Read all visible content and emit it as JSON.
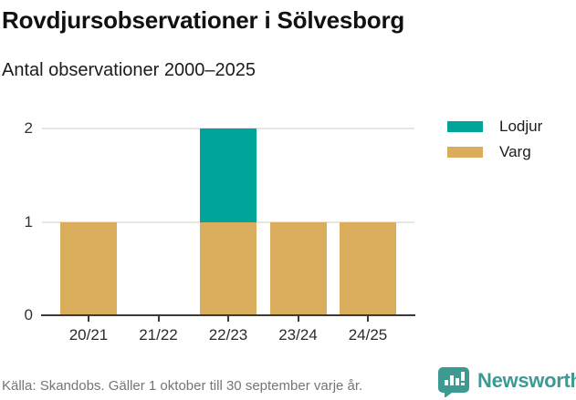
{
  "chart_data": {
    "type": "bar",
    "stacked": true,
    "title": "Rovdjursobservationer i Sölvesborg",
    "subtitle": "Antal observationer 2000–2025",
    "categories": [
      "20/21",
      "21/22",
      "22/23",
      "23/24",
      "24/25"
    ],
    "series": [
      {
        "name": "Lodjur",
        "color": "#00a49b",
        "values": [
          0,
          0,
          1,
          0,
          0
        ]
      },
      {
        "name": "Varg",
        "color": "#d9ad5c",
        "values": [
          1,
          0,
          1,
          1,
          1
        ]
      }
    ],
    "ylim": [
      0,
      2
    ],
    "yticks": [
      0,
      1,
      2
    ],
    "grid": "horizontal",
    "legend_position": "top-right",
    "xlabel": "",
    "ylabel": ""
  },
  "footer": {
    "source": "Källa: Skandobs. Gäller 1 oktober till 30 september varje år.",
    "brand": "Newsworthy"
  },
  "colors": {
    "lodjur": "#00a49b",
    "varg": "#d9ad5c",
    "brand_teal": "#3c9a93",
    "gridline": "#e6e6e6",
    "axis": "#3a3a3a"
  }
}
